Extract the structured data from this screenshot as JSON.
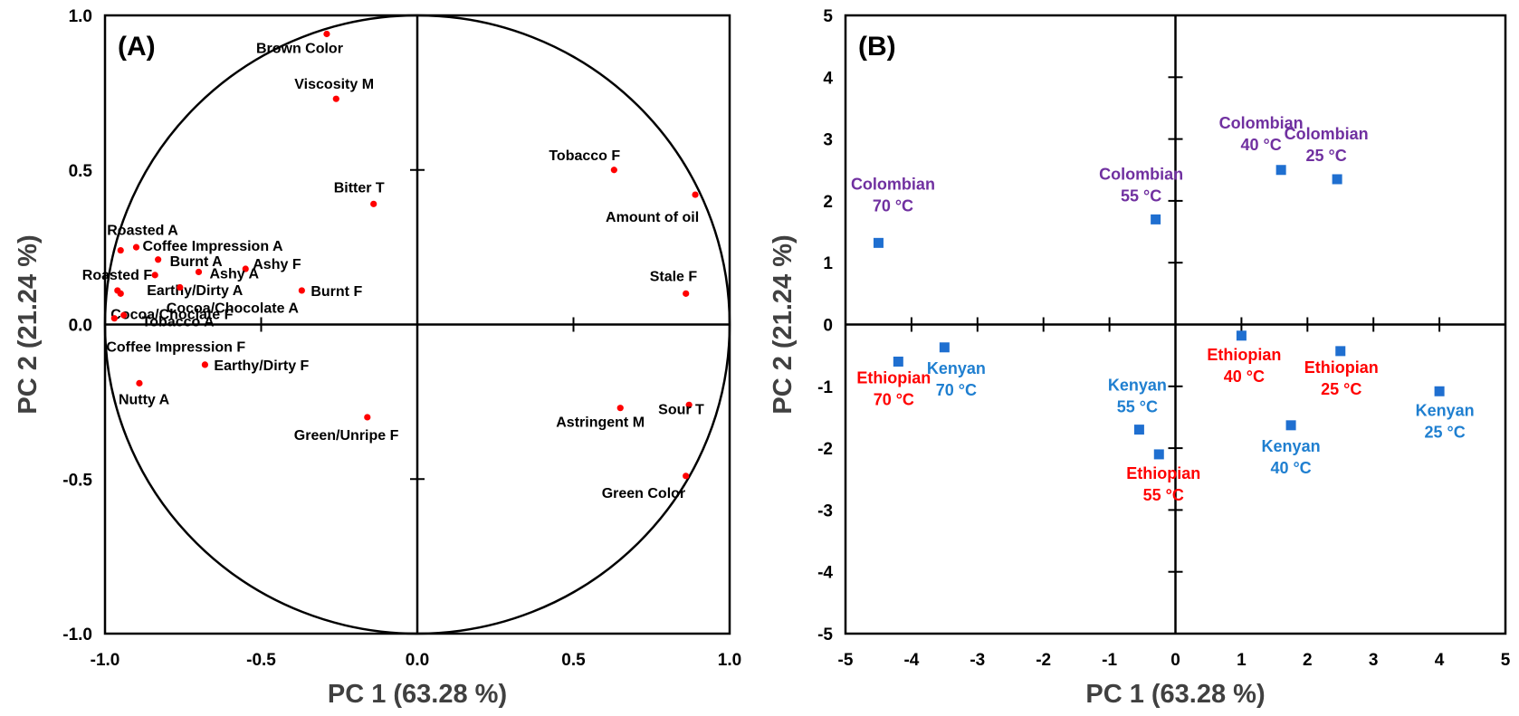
{
  "chart_data": [
    {
      "panel": "(A)",
      "type": "scatter",
      "xlabel": "PC 1 (63.28 %)",
      "ylabel": "PC 2 (21.24 %)",
      "xlim": [
        -1.0,
        1.0
      ],
      "ylim": [
        -1.0,
        1.0
      ],
      "xticks": [
        "-1.0",
        "-0.5",
        "0.0",
        "0.5",
        "1.0"
      ],
      "yticks": [
        "1.0",
        "0.5",
        "0.0",
        "-0.5",
        "-1.0"
      ],
      "grid": false,
      "unit_circle": true,
      "marker_color": "#ff0000",
      "points": [
        {
          "label": "Brown Color",
          "x": -0.29,
          "y": 0.94
        },
        {
          "label": "Viscosity M",
          "x": -0.26,
          "y": 0.73
        },
        {
          "label": "Bitter T",
          "x": -0.14,
          "y": 0.39
        },
        {
          "label": "Tobacco F",
          "x": 0.63,
          "y": 0.5
        },
        {
          "label": "Amount of oil",
          "x": 0.89,
          "y": 0.42
        },
        {
          "label": "Stale F",
          "x": 0.86,
          "y": 0.1
        },
        {
          "label": "Roasted A",
          "x": -0.95,
          "y": 0.24
        },
        {
          "label": "Coffee Impression A",
          "x": -0.9,
          "y": 0.25
        },
        {
          "label": "Burnt A",
          "x": -0.83,
          "y": 0.21
        },
        {
          "label": "Ashy F",
          "x": -0.55,
          "y": 0.18
        },
        {
          "label": "Ashy A",
          "x": -0.7,
          "y": 0.17
        },
        {
          "label": "Earthy/Dirty A",
          "x": -0.84,
          "y": 0.16
        },
        {
          "label": "Roasted F",
          "x": -0.96,
          "y": 0.11
        },
        {
          "label": "Burnt F",
          "x": -0.37,
          "y": 0.11
        },
        {
          "label": "Cocoa/Chocolate A",
          "x": -0.76,
          "y": 0.12
        },
        {
          "label": "Cocoa/Choclate F",
          "x": -0.95,
          "y": 0.1
        },
        {
          "label": "Tobacco A",
          "x": -0.94,
          "y": 0.03
        },
        {
          "label": "Coffee Impression F",
          "x": -0.97,
          "y": 0.02
        },
        {
          "label": "Earthy/Dirty F",
          "x": -0.68,
          "y": -0.13
        },
        {
          "label": "Nutty A",
          "x": -0.89,
          "y": -0.19
        },
        {
          "label": "Green/Unripe F",
          "x": -0.16,
          "y": -0.3
        },
        {
          "label": "Astringent M",
          "x": 0.65,
          "y": -0.27
        },
        {
          "label": "Sour T",
          "x": 0.87,
          "y": -0.26
        },
        {
          "label": "Green Color",
          "x": 0.86,
          "y": -0.49
        }
      ]
    },
    {
      "panel": "(B)",
      "type": "scatter",
      "xlabel": "PC 1 (63.28 %)",
      "ylabel": "PC 2 (21.24 %)",
      "xlim": [
        -5,
        5
      ],
      "ylim": [
        -5,
        5
      ],
      "xticks": [
        "-5",
        "-4",
        "-3",
        "-2",
        "-1",
        "0",
        "1",
        "2",
        "3",
        "4",
        "5"
      ],
      "yticks": [
        "5",
        "4",
        "3",
        "2",
        "1",
        "0",
        "-1",
        "-2",
        "-3",
        "-4",
        "-5"
      ],
      "grid": false,
      "marker_color": "#1f6fd0",
      "group_colors": {
        "Colombian": "#7030a0",
        "Kenyan": "#1f7fd0",
        "Ethiopian": "#ff0000"
      },
      "points": [
        {
          "group": "Colombian",
          "temp": "70 °C",
          "x": -4.5,
          "y": 1.32
        },
        {
          "group": "Colombian",
          "temp": "55 °C",
          "x": -0.3,
          "y": 1.7
        },
        {
          "group": "Colombian",
          "temp": "40 °C",
          "x": 1.6,
          "y": 2.5
        },
        {
          "group": "Colombian",
          "temp": "25 °C",
          "x": 2.45,
          "y": 2.35
        },
        {
          "group": "Kenyan",
          "temp": "70 °C",
          "x": -3.5,
          "y": -0.37
        },
        {
          "group": "Kenyan",
          "temp": "55 °C",
          "x": -0.55,
          "y": -1.7
        },
        {
          "group": "Kenyan",
          "temp": "40 °C",
          "x": 1.75,
          "y": -1.63
        },
        {
          "group": "Kenyan",
          "temp": "25 °C",
          "x": 4.0,
          "y": -1.08
        },
        {
          "group": "Ethiopian",
          "temp": "70 °C",
          "x": -4.2,
          "y": -0.6
        },
        {
          "group": "Ethiopian",
          "temp": "55 °C",
          "x": -0.25,
          "y": -2.1
        },
        {
          "group": "Ethiopian",
          "temp": "40 °C",
          "x": 1.0,
          "y": -0.18
        },
        {
          "group": "Ethiopian",
          "temp": "25 °C",
          "x": 2.5,
          "y": -0.43
        }
      ]
    }
  ]
}
